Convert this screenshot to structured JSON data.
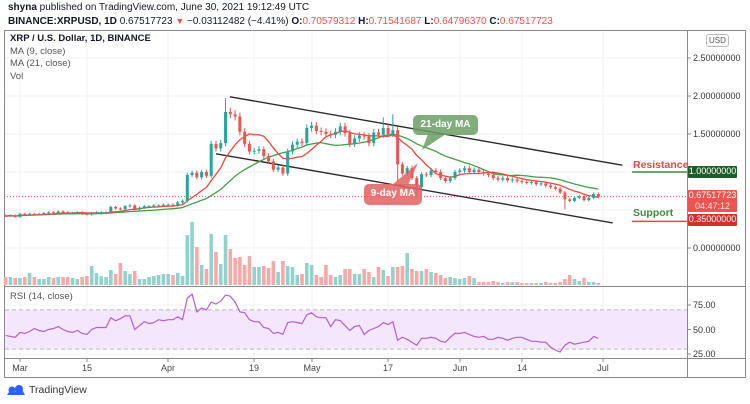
{
  "header": {
    "publisher": "shyna",
    "published_text": " published on TradingView.com, June 30, 2021 19:12:49 UTC",
    "symbol": "BINANCE:XRPUSD, 1D",
    "last": "0.67517723",
    "change_arrow": "▼",
    "change": "−0.03112482 (−4.41%)",
    "ohlc": [
      {
        "k": "O:",
        "v": "0.70579312"
      },
      {
        "k": "H:",
        "v": "0.71541687"
      },
      {
        "k": "L:",
        "v": "0.64796370"
      },
      {
        "k": "C:",
        "v": "0.67517723"
      }
    ]
  },
  "legend": {
    "title": "XRP / U.S. Dollar, 1D, BINANCE",
    "ma9": "MA (9, close)",
    "ma21": "MA (21, close)",
    "vol": "Vol"
  },
  "price_axis": {
    "currency": "USD",
    "ticks": [
      "2.50000000",
      "2.00000000",
      "1.50000000",
      "0.00000000"
    ],
    "resistance_value": "1.00000000",
    "current_price": "0.67517723",
    "countdown": "04:47:12",
    "support_value": "0.35000000"
  },
  "levels": {
    "resistance": "Resistance",
    "support": "Support"
  },
  "annotations": {
    "ma21": "21-day MA",
    "ma9": "9-day MA"
  },
  "rsi": {
    "label": "RSI (14, close)",
    "ticks": [
      "75.00",
      "50.00",
      "25.00"
    ]
  },
  "time_axis": [
    "Mar",
    "15",
    "Apr",
    "19",
    "May",
    "17",
    "Jun",
    "14",
    "Jul"
  ],
  "footer": {
    "brand": "TradingView"
  },
  "colors": {
    "up": "#26a69a",
    "down": "#ef5350",
    "vol_up": "#93d2cc",
    "vol_down": "#f8a9a7",
    "ma9": "#f0463e",
    "ma21": "#43a047",
    "rsi_line": "#b35fd0",
    "rsi_band": "#f3e6fd",
    "resistance_box": "#1e5d2a",
    "support_box": "#d32f2f",
    "price_box": "#ef5350",
    "brand_blue": "#2962ff"
  },
  "chart_data": {
    "type": "candlestick",
    "title": "XRP / U.S. Dollar, 1D, BINANCE",
    "xlabel": "",
    "ylabel": "USD",
    "x_range": [
      "2021-02-26",
      "2021-06-30"
    ],
    "ylim": [
      0,
      2.5
    ],
    "y_ticks": [
      2.5,
      2.0,
      1.5,
      1.0,
      0.35,
      0.0
    ],
    "x_tick_labels": [
      "Mar",
      "15",
      "Apr",
      "19",
      "May",
      "17",
      "Jun",
      "14",
      "Jul"
    ],
    "grid": true,
    "candles": {
      "start_date": "2021-02-26",
      "first_open": 0.43,
      "close": [
        0.42,
        0.43,
        0.41,
        0.45,
        0.44,
        0.45,
        0.44,
        0.45,
        0.46,
        0.47,
        0.46,
        0.48,
        0.47,
        0.46,
        0.46,
        0.47,
        0.45,
        0.44,
        0.46,
        0.47,
        0.47,
        0.47,
        0.54,
        0.52,
        0.51,
        0.55,
        0.56,
        0.51,
        0.53,
        0.55,
        0.55,
        0.56,
        0.56,
        0.57,
        0.57,
        0.56,
        0.6,
        0.62,
        0.96,
        0.99,
        0.93,
        1.0,
        0.95,
        1.37,
        1.31,
        1.38,
        1.79,
        1.76,
        1.73,
        1.53,
        1.37,
        1.27,
        1.28,
        1.3,
        1.21,
        1.14,
        1.03,
        1.06,
        0.98,
        1.27,
        1.36,
        1.4,
        1.38,
        1.58,
        1.61,
        1.54,
        1.53,
        1.5,
        1.49,
        1.53,
        1.6,
        1.51,
        1.37,
        1.44,
        1.48,
        1.47,
        1.38,
        1.52,
        1.49,
        1.58,
        1.5,
        1.55,
        1.1,
        0.98,
        1.05,
        0.92,
        0.8,
        0.97,
        0.96,
        1.02,
        1.0,
        0.92,
        0.88,
        0.92,
        1.0,
        1.02,
        1.05,
        1.0,
        1.03,
        1.0,
        0.98,
        0.96,
        0.92,
        0.9,
        0.92,
        0.89,
        0.9,
        0.88,
        0.87,
        0.86,
        0.87,
        0.84,
        0.85,
        0.82,
        0.8,
        0.78,
        0.73,
        0.64,
        0.62,
        0.66,
        0.68,
        0.63,
        0.66,
        0.71,
        0.675
      ],
      "wick_estimate_pct": 0.03,
      "notable_highs": {
        "46": 1.97,
        "81": 1.76,
        "79": 1.72
      },
      "notable_lows": {
        "82": 0.87,
        "86": 0.68,
        "117": 0.51
      }
    },
    "volume_relative": [
      8,
      8,
      7,
      7,
      8,
      12,
      8,
      6,
      6,
      8,
      7,
      8,
      8,
      8,
      7,
      6,
      8,
      9,
      19,
      12,
      9,
      8,
      15,
      11,
      22,
      14,
      11,
      14,
      6,
      6,
      8,
      9,
      10,
      11,
      11,
      10,
      12,
      9,
      50,
      63,
      38,
      20,
      16,
      51,
      33,
      21,
      50,
      36,
      27,
      28,
      20,
      29,
      18,
      18,
      19,
      17,
      24,
      13,
      24,
      19,
      18,
      10,
      11,
      22,
      20,
      10,
      8,
      20,
      10,
      8,
      10,
      16,
      16,
      11,
      11,
      16,
      13,
      8,
      18,
      15,
      9,
      18,
      18,
      19,
      32,
      16,
      14,
      14,
      16,
      13,
      12,
      10,
      7,
      8,
      7,
      6,
      7,
      9,
      7,
      3,
      3,
      3,
      4,
      3,
      2,
      3,
      3,
      3,
      2,
      2,
      2,
      2,
      2,
      3,
      2,
      2,
      3,
      6,
      10,
      6,
      4,
      7,
      3,
      3,
      2
    ],
    "series": [
      {
        "name": "MA (9, close)",
        "type": "sma",
        "period": 9
      },
      {
        "name": "MA (21, close)",
        "type": "sma",
        "period": 21
      }
    ],
    "levels": [
      {
        "name": "Resistance",
        "value": 1.0
      },
      {
        "name": "Support",
        "value": 0.35
      },
      {
        "name": "Last price",
        "value": 0.67517723
      }
    ],
    "channel": {
      "upper": [
        [
          46.9,
          1.99
        ],
        [
          129.0,
          1.09
        ]
      ],
      "lower": [
        [
          44.0,
          1.24
        ],
        [
          127.0,
          0.33
        ]
      ]
    },
    "rsi": {
      "name": "RSI (14, close)",
      "ylim": [
        20,
        90
      ],
      "bands": [
        30,
        70
      ],
      "ticks": [
        75,
        50,
        25
      ],
      "values": [
        44,
        43,
        42,
        47,
        46,
        48,
        51,
        49,
        48,
        50,
        51,
        53,
        50,
        48,
        47,
        49,
        46,
        45,
        50,
        52,
        52,
        52,
        62,
        59,
        61,
        64,
        64,
        50,
        54,
        58,
        56,
        57,
        60,
        59,
        60,
        60,
        63,
        60,
        82,
        86,
        68,
        72,
        70,
        78,
        76,
        79,
        85,
        84,
        78,
        68,
        67,
        60,
        58,
        58,
        52,
        51,
        46,
        47,
        45,
        57,
        58,
        57,
        56,
        65,
        67,
        63,
        62,
        62,
        53,
        60,
        59,
        54,
        49,
        53,
        54,
        45,
        49,
        51,
        53,
        57,
        55,
        58,
        39,
        42,
        40,
        37,
        34,
        41,
        41,
        42,
        41,
        38,
        37,
        42,
        46,
        46,
        47,
        45,
        43,
        42,
        43,
        40,
        40,
        42,
        41,
        39,
        41,
        42,
        42,
        40,
        38,
        38,
        37,
        37,
        32,
        29,
        27,
        34,
        37,
        35,
        36,
        37,
        38,
        43,
        41
      ]
    }
  }
}
